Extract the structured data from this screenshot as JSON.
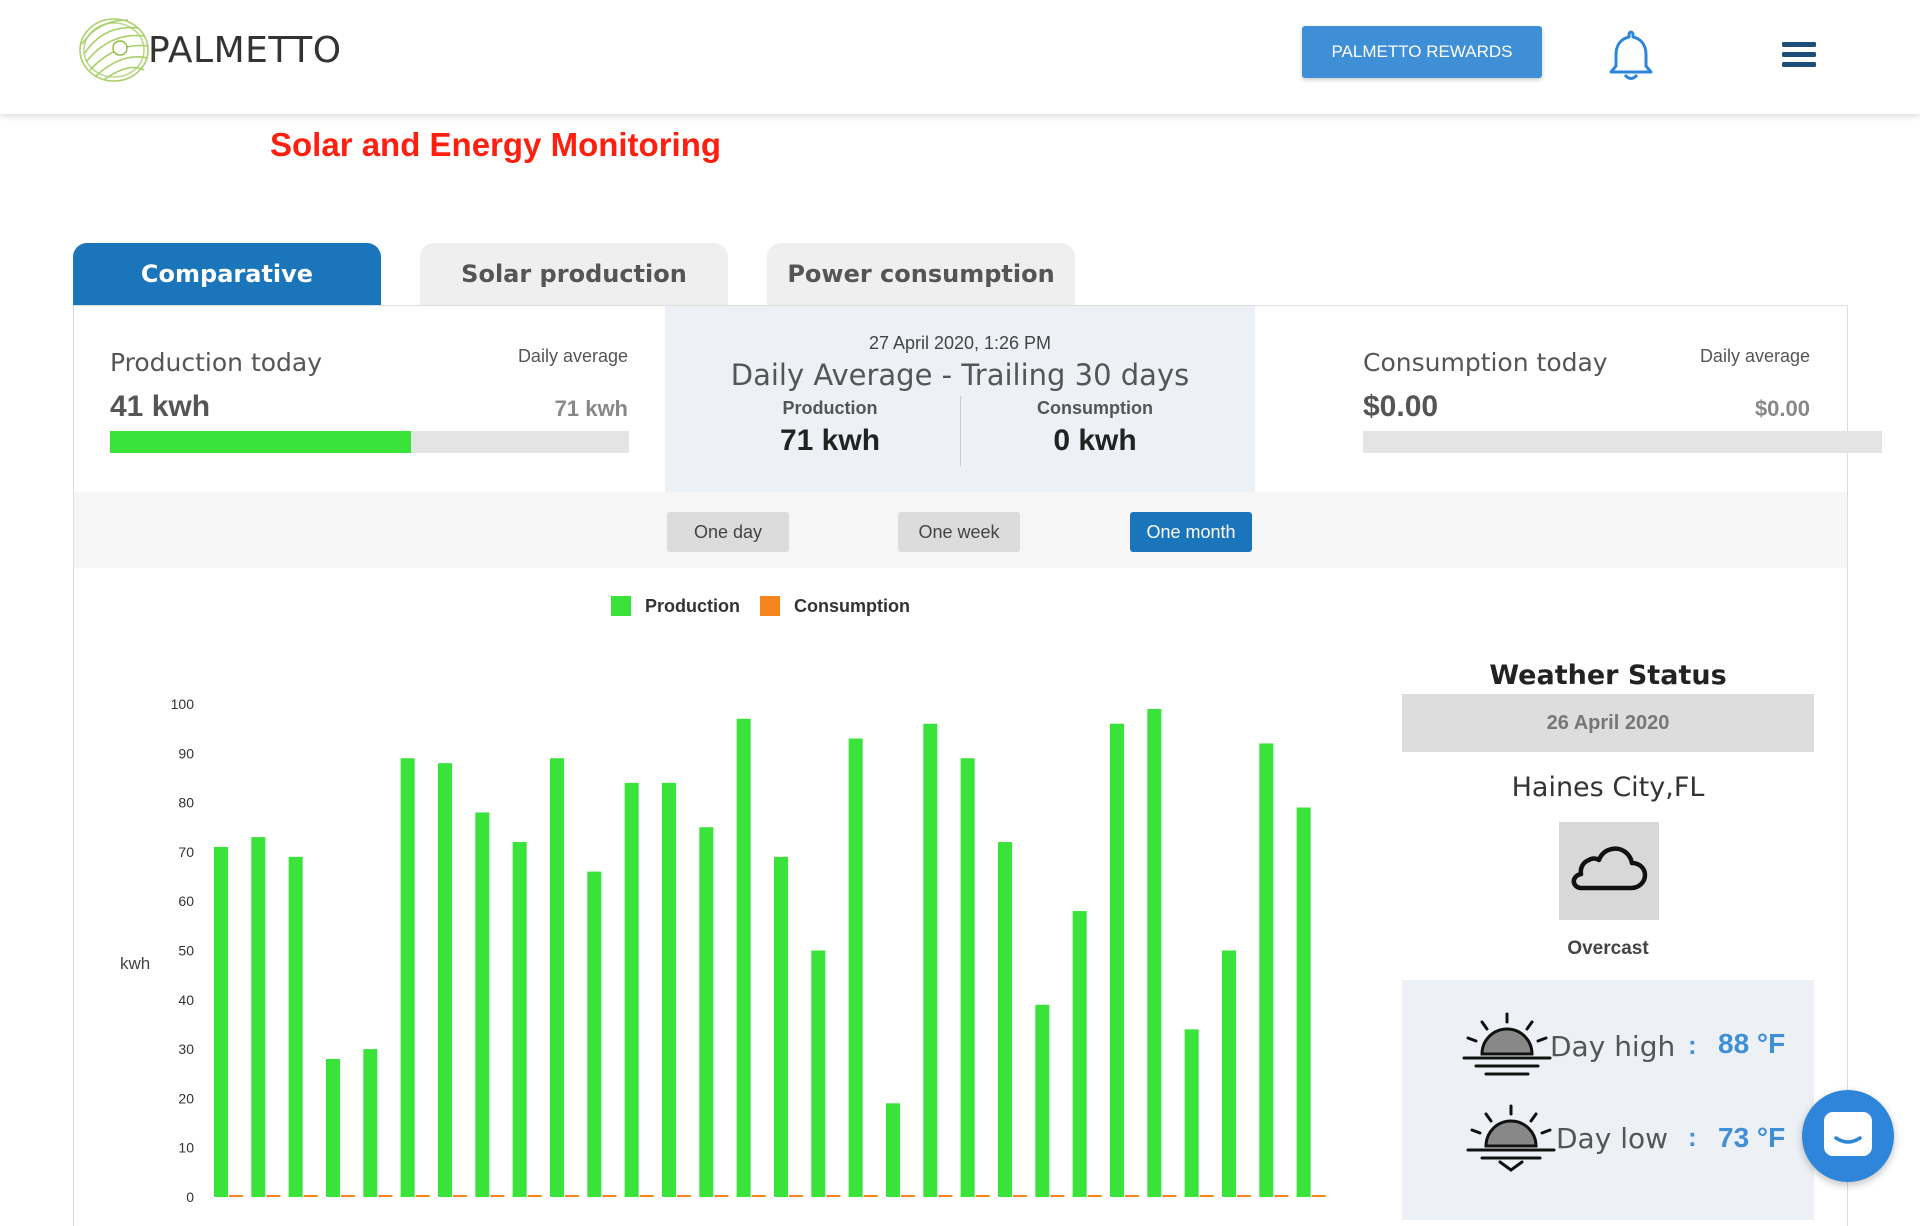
{
  "header": {
    "brand": "PALMETTO",
    "rewards_label": "PALMETTO REWARDS",
    "accent_color": "#3f8fd6",
    "icons": [
      "palmetto-logo-icon",
      "bell-icon",
      "hamburger-menu-icon"
    ]
  },
  "page_title": "Solar and Energy Monitoring",
  "tabs": [
    {
      "label": "Comparative",
      "active": true
    },
    {
      "label": "Solar production",
      "active": false
    },
    {
      "label": "Power consumption",
      "active": false
    }
  ],
  "production_today": {
    "title": "Production today",
    "avg_label": "Daily average",
    "value": "41 kwh",
    "avg_value": "71 kwh",
    "progress_fraction": 0.58
  },
  "daily_average": {
    "date": "27 April 2020, 1:26 PM",
    "title": "Daily Average - Trailing 30 days",
    "production_label": "Production",
    "production_value": "71 kwh",
    "consumption_label": "Consumption",
    "consumption_value": "0 kwh"
  },
  "consumption_today": {
    "title": "Consumption today",
    "avg_label": "Daily average",
    "value": "$0.00",
    "avg_value": "$0.00",
    "progress_fraction": 0
  },
  "range_buttons": [
    {
      "label": "One day",
      "selected": false
    },
    {
      "label": "One week",
      "selected": false
    },
    {
      "label": "One month",
      "selected": true
    }
  ],
  "chart_data": {
    "type": "bar",
    "ylabel": "kwh",
    "ylim": [
      0,
      100
    ],
    "yticks": [
      0,
      10,
      20,
      30,
      40,
      50,
      60,
      70,
      80,
      90,
      100
    ],
    "legend_placement": "top",
    "grid": false,
    "series": [
      {
        "name": "Production",
        "color": "#39e339",
        "values": [
          71,
          73,
          69,
          28,
          30,
          89,
          88,
          78,
          72,
          89,
          66,
          84,
          84,
          75,
          97,
          69,
          50,
          93,
          19,
          96,
          89,
          72,
          39,
          58,
          96,
          99,
          34,
          50,
          92,
          79
        ]
      },
      {
        "name": "Consumption",
        "color": "#f5861f",
        "values": [
          0,
          0,
          0,
          0,
          0,
          0,
          0,
          0,
          0,
          0,
          0,
          0,
          0,
          0,
          0,
          0,
          0,
          0,
          0,
          0,
          0,
          0,
          0,
          0,
          0,
          0,
          0,
          0,
          0,
          0
        ]
      }
    ]
  },
  "weather": {
    "title": "Weather Status",
    "date": "26 April 2020",
    "city": "Haines City,FL",
    "condition": "Overcast",
    "condition_icon": "cloud-icon",
    "high_label": "Day high",
    "high_value": "88 °F",
    "low_label": "Day low",
    "low_value": "73 °F",
    "colon": ":"
  }
}
